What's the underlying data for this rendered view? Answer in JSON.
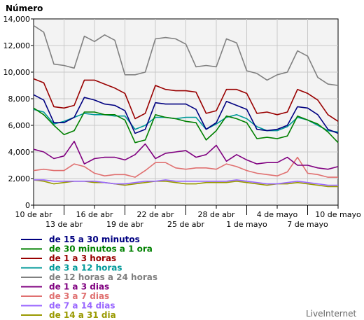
{
  "chart_data": {
    "type": "line",
    "ylabel": "Número",
    "ylim": [
      0,
      14000
    ],
    "y_ticks": [
      "0",
      "2,000",
      "4,000",
      "6,000",
      "8,000",
      "10,000",
      "12,000",
      "14,000"
    ],
    "x_ticks_top": [
      "10 de abr",
      "16 de abr",
      "22 de abr",
      "28 de abr",
      "4 de mayo",
      "10 de mayo"
    ],
    "x_ticks_bottom": [
      "13 de abr",
      "19 de abr",
      "25 de abr",
      "1 de mayo",
      "7 de mayo"
    ],
    "x": [
      "10 de abr",
      "11 de abr",
      "12 de abr",
      "13 de abr",
      "14 de abr",
      "15 de abr",
      "16 de abr",
      "17 de abr",
      "18 de abr",
      "19 de abr",
      "20 de abr",
      "21 de abr",
      "22 de abr",
      "23 de abr",
      "24 de abr",
      "25 de abr",
      "26 de abr",
      "27 de abr",
      "28 de abr",
      "29 de abr",
      "30 de abr",
      "1 de mayo",
      "2 de mayo",
      "3 de mayo",
      "4 de mayo",
      "5 de mayo",
      "6 de mayo",
      "7 de mayo",
      "8 de mayo",
      "9 de mayo",
      "10 de mayo"
    ],
    "grid": true,
    "series": [
      {
        "name": "de 15 a 30 minutos",
        "color": "#000080",
        "values": [
          8300,
          7900,
          6200,
          6200,
          6600,
          8100,
          7900,
          7600,
          7500,
          7100,
          5400,
          5700,
          7700,
          7600,
          7600,
          7600,
          7200,
          5700,
          6200,
          7800,
          7500,
          7200,
          5700,
          5600,
          5700,
          6000,
          7400,
          7300,
          6800,
          5700,
          5400
        ]
      },
      {
        "name": "de 30 minutos a 1 ora",
        "color": "#008000",
        "values": [
          7300,
          6800,
          6000,
          5300,
          5600,
          7000,
          7000,
          6800,
          6800,
          6400,
          4700,
          4900,
          6800,
          6600,
          6500,
          6300,
          6200,
          4900,
          5600,
          6700,
          6500,
          6200,
          5000,
          5100,
          5000,
          5200,
          6700,
          6400,
          6100,
          5500,
          4700
        ]
      },
      {
        "name": "de 1 a 3 horas",
        "color": "#990000",
        "values": [
          9500,
          9200,
          7400,
          7300,
          7500,
          9400,
          9400,
          9100,
          8800,
          8400,
          6500,
          6900,
          9000,
          8700,
          8600,
          8600,
          8500,
          6900,
          7100,
          8700,
          8700,
          8400,
          6900,
          7000,
          6800,
          7000,
          8700,
          8400,
          7900,
          6800,
          6300
        ]
      },
      {
        "name": "de 3 a 12 horas",
        "color": "#009999",
        "values": [
          7200,
          7000,
          6100,
          6300,
          6600,
          6900,
          6800,
          6800,
          6700,
          6700,
          5700,
          6000,
          6600,
          6600,
          6500,
          6600,
          6600,
          5700,
          6100,
          6600,
          6800,
          6500,
          5900,
          5600,
          5600,
          5900,
          6600,
          6400,
          6000,
          5600,
          5500
        ]
      },
      {
        "name": "de 12 horas a 24 horas",
        "color": "#808080",
        "values": [
          13500,
          13000,
          10600,
          10500,
          10300,
          12700,
          12300,
          12800,
          12400,
          9800,
          9800,
          10000,
          12500,
          12600,
          12500,
          12100,
          10400,
          10500,
          10400,
          12500,
          12200,
          10100,
          9900,
          9400,
          9800,
          10000,
          11600,
          11200,
          9600,
          9100,
          9000
        ]
      },
      {
        "name": "de 1 a 3 dias",
        "color": "#800080",
        "values": [
          4200,
          4000,
          3500,
          3700,
          4800,
          3100,
          3500,
          3600,
          3600,
          3400,
          3800,
          4600,
          3500,
          3900,
          4000,
          4100,
          3600,
          3800,
          4500,
          3300,
          3800,
          3400,
          3100,
          3200,
          3200,
          3600,
          3000,
          3000,
          2800,
          2700,
          2900
        ]
      },
      {
        "name": "de 3 a 7 dias",
        "color": "#e07070",
        "values": [
          2600,
          2700,
          2600,
          2600,
          3100,
          2900,
          2400,
          2200,
          2300,
          2300,
          2100,
          2600,
          3200,
          3200,
          2800,
          2700,
          2800,
          2800,
          2700,
          3100,
          2900,
          2600,
          2400,
          2300,
          2200,
          2500,
          3600,
          2400,
          2300,
          2100,
          2100
        ]
      },
      {
        "name": "de 7 a 14 dias",
        "color": "#9966ff",
        "values": [
          1900,
          1900,
          1800,
          1800,
          1800,
          1800,
          1800,
          1700,
          1600,
          1600,
          1700,
          1800,
          1800,
          1900,
          1800,
          1800,
          1800,
          1800,
          1800,
          1800,
          1900,
          1800,
          1700,
          1600,
          1600,
          1700,
          1800,
          1700,
          1600,
          1500,
          1500
        ]
      },
      {
        "name": "de 14 a 31 dia",
        "color": "#999900",
        "values": [
          1900,
          1800,
          1600,
          1700,
          1800,
          1800,
          1700,
          1700,
          1600,
          1500,
          1600,
          1700,
          1800,
          1800,
          1700,
          1600,
          1600,
          1700,
          1700,
          1700,
          1800,
          1700,
          1600,
          1500,
          1600,
          1600,
          1700,
          1600,
          1500,
          1400,
          1400
        ]
      }
    ],
    "legend_position": "bottom-left"
  },
  "brand": "LiveInternet"
}
